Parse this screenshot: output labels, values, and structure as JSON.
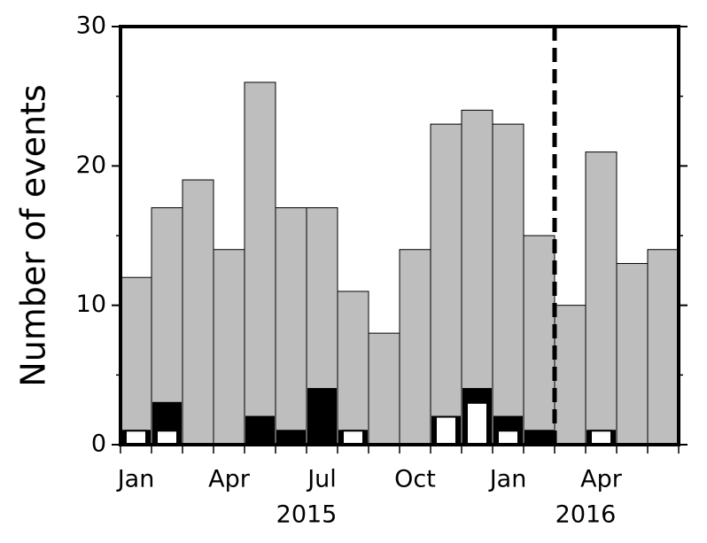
{
  "chart_data": {
    "type": "bar",
    "y_label": "Number of events",
    "categories": [
      "Jan",
      null,
      null,
      "Apr",
      null,
      null,
      "Jul",
      null,
      null,
      "Oct",
      null,
      null,
      "Jan",
      null,
      null,
      "Apr",
      null,
      null
    ],
    "x_groups": [
      {
        "label": "2015",
        "count": 12
      },
      {
        "label": "2016",
        "count": 6
      }
    ],
    "series": [
      {
        "color": "#bebebe",
        "values": [
          12,
          17,
          19,
          14,
          26,
          17,
          17,
          11,
          8,
          14,
          23,
          24,
          23,
          15,
          10,
          21,
          13,
          14
        ]
      },
      {
        "color": "#000000",
        "values": [
          1,
          3,
          0,
          0,
          2,
          1,
          4,
          1,
          0,
          0,
          2,
          4,
          2,
          1,
          0,
          1,
          0,
          0
        ]
      },
      {
        "color": "#ffffff",
        "values": [
          1,
          1,
          0,
          0,
          0,
          0,
          0,
          1,
          0,
          0,
          2,
          3,
          1,
          0,
          0,
          1,
          0,
          0
        ]
      }
    ],
    "ylim": [
      0,
      30
    ],
    "yticks": [
      0,
      10,
      20,
      30
    ],
    "yminorticks": [
      5,
      15,
      25
    ]
  }
}
